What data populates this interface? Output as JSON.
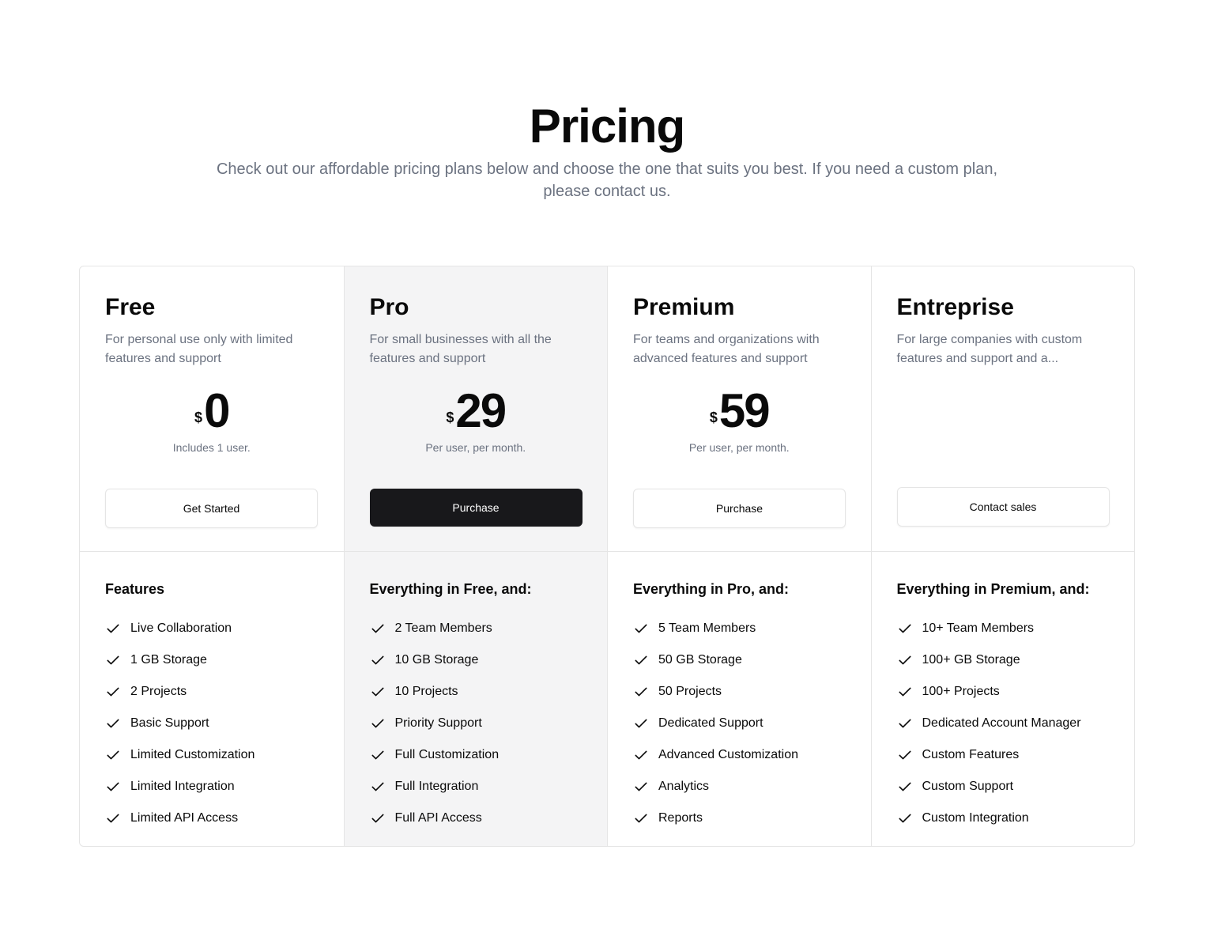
{
  "header": {
    "title": "Pricing",
    "subtitle": "Check out our affordable pricing plans below and choose the one that suits you best. If you need a custom plan, please contact us."
  },
  "plans": [
    {
      "name": "Free",
      "description": "For personal use only with limited features and support",
      "currency": "$",
      "price": "0",
      "price_note": "Includes 1 user.",
      "button": "Get Started",
      "features_heading": "Features",
      "features": [
        "Live Collaboration",
        "1 GB Storage",
        "2 Projects",
        "Basic Support",
        "Limited Customization",
        "Limited Integration",
        "Limited API Access"
      ]
    },
    {
      "name": "Pro",
      "description": "For small businesses with all the features and support",
      "currency": "$",
      "price": "29",
      "price_note": "Per user, per month.",
      "button": "Purchase",
      "features_heading": "Everything in Free, and:",
      "features": [
        "2 Team Members",
        "10 GB Storage",
        "10 Projects",
        "Priority Support",
        "Full Customization",
        "Full Integration",
        "Full API Access"
      ]
    },
    {
      "name": "Premium",
      "description": "For teams and organizations with advanced features and support",
      "currency": "$",
      "price": "59",
      "price_note": "Per user, per month.",
      "button": "Purchase",
      "features_heading": "Everything in Pro, and:",
      "features": [
        "5 Team Members",
        "50 GB Storage",
        "50 Projects",
        "Dedicated Support",
        "Advanced Customization",
        "Analytics",
        "Reports"
      ]
    },
    {
      "name": "Entreprise",
      "description": "For large companies with custom features and support and a...",
      "button": "Contact sales",
      "features_heading": "Everything in Premium, and:",
      "features": [
        "10+ Team Members",
        "100+ GB Storage",
        "100+ Projects",
        "Dedicated Account Manager",
        "Custom Features",
        "Custom Support",
        "Custom Integration"
      ]
    }
  ],
  "colors": {
    "highlight_bg": "#f4f4f5",
    "primary_button": "#18181b",
    "muted_text": "#6b7280",
    "border": "#e5e5e5"
  },
  "icons": {
    "feature_bullet": "check-icon"
  }
}
